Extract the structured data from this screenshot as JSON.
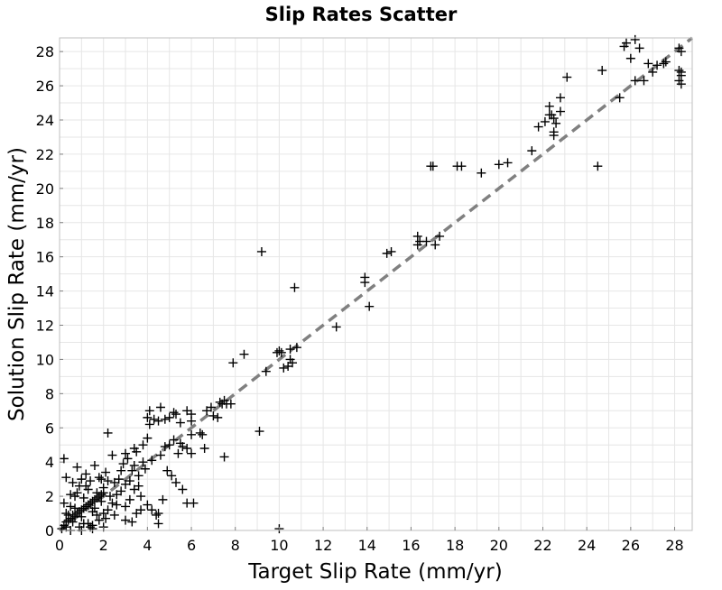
{
  "chart_data": {
    "type": "scatter",
    "title": "Slip Rates Scatter",
    "xlabel": "Target Slip Rate (mm/yr)",
    "ylabel": "Solution Slip Rate (mm/yr)",
    "xlim": [
      0,
      28.8
    ],
    "ylim": [
      0,
      28.8
    ],
    "xticks": [
      0,
      2,
      4,
      6,
      8,
      10,
      12,
      14,
      16,
      18,
      20,
      22,
      24,
      26,
      28
    ],
    "yticks": [
      0,
      2,
      4,
      6,
      8,
      10,
      12,
      14,
      16,
      18,
      20,
      22,
      24,
      26,
      28
    ],
    "grid": true,
    "marker": "plus",
    "marker_color": "#000000",
    "reference_line": {
      "style": "dashed",
      "color": "#808080",
      "from": [
        0,
        0
      ],
      "to": [
        28.8,
        28.8
      ]
    },
    "series": [
      {
        "points": [
          [
            0.2,
            4.2
          ],
          [
            0.3,
            3.1
          ],
          [
            0.2,
            1.6
          ],
          [
            0.4,
            0.9
          ],
          [
            0.3,
            0.2
          ],
          [
            0.5,
            2.1
          ],
          [
            0.6,
            0.5
          ],
          [
            0.7,
            1.3
          ],
          [
            0.8,
            3.7
          ],
          [
            0.9,
            2.6
          ],
          [
            1.0,
            0.8
          ],
          [
            1.1,
            1.9
          ],
          [
            1.2,
            3.3
          ],
          [
            1.3,
            0.4
          ],
          [
            1.4,
            2.9
          ],
          [
            1.5,
            1.1
          ],
          [
            1.6,
            3.8
          ],
          [
            1.7,
            2.2
          ],
          [
            1.8,
            0.6
          ],
          [
            1.9,
            1.7
          ],
          [
            2.0,
            2.5
          ],
          [
            2.1,
            3.4
          ],
          [
            2.2,
            1.2
          ],
          [
            2.3,
            2.0
          ],
          [
            2.4,
            4.4
          ],
          [
            2.5,
            2.8
          ],
          [
            2.6,
            1.5
          ],
          [
            2.7,
            3.0
          ],
          [
            2.8,
            2.3
          ],
          [
            2.9,
            3.9
          ],
          [
            3.0,
            2.7
          ],
          [
            3.1,
            4.2
          ],
          [
            3.2,
            1.8
          ],
          [
            3.3,
            3.5
          ],
          [
            3.4,
            2.4
          ],
          [
            3.5,
            4.6
          ],
          [
            3.6,
            3.2
          ],
          [
            3.7,
            2.0
          ],
          [
            3.8,
            4.0
          ],
          [
            3.9,
            3.6
          ],
          [
            0.1,
            0.1
          ],
          [
            0.2,
            0.3
          ],
          [
            0.3,
            0.5
          ],
          [
            0.4,
            0.6
          ],
          [
            0.5,
            0.7
          ],
          [
            0.6,
            0.9
          ],
          [
            0.7,
            0.8
          ],
          [
            0.8,
            1.0
          ],
          [
            0.9,
            1.1
          ],
          [
            1.0,
            1.2
          ],
          [
            1.1,
            1.3
          ],
          [
            1.2,
            1.4
          ],
          [
            1.3,
            1.5
          ],
          [
            1.4,
            1.6
          ],
          [
            1.5,
            1.7
          ],
          [
            1.6,
            1.8
          ],
          [
            1.7,
            1.9
          ],
          [
            1.8,
            2.0
          ],
          [
            1.9,
            2.1
          ],
          [
            2.0,
            2.2
          ],
          [
            0.3,
            1.0
          ],
          [
            0.5,
            1.4
          ],
          [
            0.7,
            2.0
          ],
          [
            0.9,
            0.2
          ],
          [
            1.1,
            0.4
          ],
          [
            1.3,
            2.4
          ],
          [
            1.5,
            0.3
          ],
          [
            1.7,
            0.9
          ],
          [
            1.9,
            3.0
          ],
          [
            2.1,
            0.7
          ],
          [
            0.6,
            2.8
          ],
          [
            0.8,
            2.2
          ],
          [
            1.0,
            3.0
          ],
          [
            1.2,
            2.6
          ],
          [
            1.4,
            0.2
          ],
          [
            1.6,
            1.3
          ],
          [
            1.8,
            3.1
          ],
          [
            2.0,
            1.0
          ],
          [
            2.2,
            2.9
          ],
          [
            2.4,
            1.6
          ],
          [
            2.6,
            2.1
          ],
          [
            2.8,
            3.5
          ],
          [
            3.0,
            1.4
          ],
          [
            3.2,
            2.9
          ],
          [
            3.4,
            3.8
          ],
          [
            3.6,
            2.6
          ],
          [
            0.5,
            0.0
          ],
          [
            1.0,
            0.0
          ],
          [
            1.5,
            0.1
          ],
          [
            2.0,
            0.2
          ],
          [
            2.2,
            5.7
          ],
          [
            2.5,
            0.9
          ],
          [
            3.0,
            0.6
          ],
          [
            3.3,
            0.5
          ],
          [
            3.5,
            1.0
          ],
          [
            3.7,
            1.2
          ],
          [
            4.0,
            1.5
          ],
          [
            4.2,
            1.2
          ],
          [
            4.4,
            0.9
          ],
          [
            4.5,
            0.4
          ],
          [
            4.5,
            1.0
          ],
          [
            4.7,
            1.8
          ],
          [
            3.0,
            4.5
          ],
          [
            3.4,
            4.8
          ],
          [
            3.8,
            5.0
          ],
          [
            4.0,
            5.4
          ],
          [
            4.1,
            6.2
          ],
          [
            4.3,
            6.5
          ],
          [
            4.0,
            6.6
          ],
          [
            4.1,
            7.0
          ],
          [
            4.6,
            7.2
          ],
          [
            4.8,
            6.5
          ],
          [
            4.5,
            6.4
          ],
          [
            5.0,
            6.6
          ],
          [
            5.2,
            6.9
          ],
          [
            5.3,
            6.8
          ],
          [
            5.5,
            6.3
          ],
          [
            5.8,
            7.0
          ],
          [
            6.0,
            6.8
          ],
          [
            6.0,
            6.4
          ],
          [
            5.0,
            5.0
          ],
          [
            5.2,
            5.3
          ],
          [
            5.5,
            5.1
          ],
          [
            5.8,
            4.8
          ],
          [
            6.0,
            5.6
          ],
          [
            5.4,
            4.5
          ],
          [
            5.6,
            4.9
          ],
          [
            4.8,
            4.9
          ],
          [
            4.6,
            4.4
          ],
          [
            4.2,
            4.1
          ],
          [
            4.9,
            3.5
          ],
          [
            5.1,
            3.2
          ],
          [
            5.3,
            2.8
          ],
          [
            5.6,
            2.4
          ],
          [
            5.8,
            1.6
          ],
          [
            6.1,
            1.6
          ],
          [
            6.4,
            5.7
          ],
          [
            6.5,
            5.6
          ],
          [
            6.6,
            4.8
          ],
          [
            6.0,
            4.5
          ],
          [
            7.0,
            6.7
          ],
          [
            7.2,
            6.6
          ],
          [
            7.4,
            7.4
          ],
          [
            7.5,
            7.6
          ],
          [
            7.6,
            7.4
          ],
          [
            7.8,
            7.4
          ],
          [
            7.5,
            4.3
          ],
          [
            6.7,
            7.0
          ],
          [
            6.9,
            7.2
          ],
          [
            7.3,
            7.5
          ],
          [
            7.9,
            9.8
          ],
          [
            8.4,
            10.3
          ],
          [
            9.2,
            16.3
          ],
          [
            9.1,
            5.8
          ],
          [
            9.4,
            9.3
          ],
          [
            9.9,
            10.4
          ],
          [
            10.0,
            10.5
          ],
          [
            10.1,
            10.4
          ],
          [
            10.2,
            9.5
          ],
          [
            10.4,
            9.6
          ],
          [
            10.5,
            10.0
          ],
          [
            10.5,
            10.6
          ],
          [
            10.6,
            9.8
          ],
          [
            10.7,
            14.2
          ],
          [
            10.8,
            10.7
          ],
          [
            10.0,
            0.1
          ],
          [
            12.6,
            11.9
          ],
          [
            13.9,
            14.8
          ],
          [
            13.9,
            14.5
          ],
          [
            14.1,
            13.1
          ],
          [
            14.9,
            16.2
          ],
          [
            15.1,
            16.3
          ],
          [
            16.3,
            17.2
          ],
          [
            16.4,
            16.9
          ],
          [
            16.3,
            16.7
          ],
          [
            16.7,
            16.9
          ],
          [
            16.9,
            21.3
          ],
          [
            17.0,
            21.3
          ],
          [
            17.1,
            16.7
          ],
          [
            17.3,
            17.2
          ],
          [
            18.1,
            21.3
          ],
          [
            18.3,
            21.3
          ],
          [
            19.2,
            20.9
          ],
          [
            20.0,
            21.4
          ],
          [
            20.4,
            21.5
          ],
          [
            21.5,
            22.2
          ],
          [
            21.8,
            23.6
          ],
          [
            22.1,
            23.9
          ],
          [
            22.3,
            24.3
          ],
          [
            22.3,
            24.8
          ],
          [
            22.4,
            24.3
          ],
          [
            22.5,
            24.1
          ],
          [
            22.6,
            23.8
          ],
          [
            22.5,
            23.3
          ],
          [
            22.5,
            23.1
          ],
          [
            22.8,
            25.3
          ],
          [
            22.8,
            24.5
          ],
          [
            23.1,
            26.5
          ],
          [
            24.5,
            21.3
          ],
          [
            24.7,
            26.9
          ],
          [
            25.5,
            25.3
          ],
          [
            25.7,
            28.3
          ],
          [
            25.8,
            28.5
          ],
          [
            26.0,
            27.6
          ],
          [
            26.2,
            26.3
          ],
          [
            26.4,
            28.2
          ],
          [
            26.6,
            26.3
          ],
          [
            26.8,
            27.3
          ],
          [
            27.0,
            26.8
          ],
          [
            27.2,
            27.2
          ],
          [
            27.5,
            27.3
          ],
          [
            27.6,
            27.4
          ],
          [
            28.2,
            28.2
          ],
          [
            28.3,
            28.0
          ],
          [
            28.2,
            26.9
          ],
          [
            28.3,
            26.6
          ],
          [
            28.2,
            26.3
          ],
          [
            28.3,
            26.1
          ],
          [
            28.3,
            26.8
          ],
          [
            26.2,
            28.7
          ]
        ]
      }
    ]
  }
}
